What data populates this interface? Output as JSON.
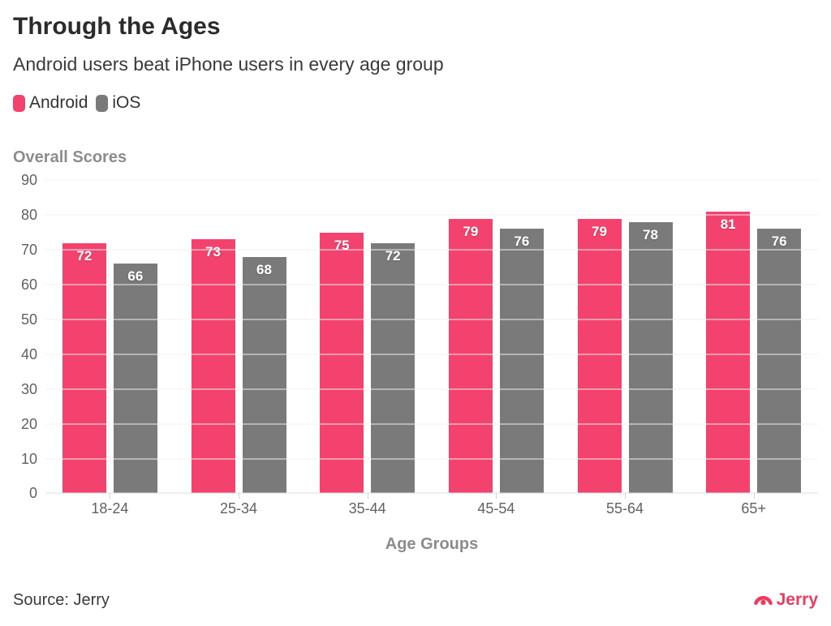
{
  "header": {
    "title": "Through the Ages",
    "subtitle": "Android users beat iPhone users in every age group"
  },
  "legend": [
    {
      "label": "Android",
      "color": "#f3426e"
    },
    {
      "label": "iOS",
      "color": "#7a7a7a"
    }
  ],
  "chart_data": {
    "type": "bar",
    "title": "Overall Scores",
    "categories": [
      "18-24",
      "25-34",
      "35-44",
      "45-54",
      "55-64",
      "65+"
    ],
    "series": [
      {
        "name": "Android",
        "color": "#f3426e",
        "values": [
          72,
          73,
          75,
          79,
          79,
          81
        ]
      },
      {
        "name": "iOS",
        "color": "#7a7a7a",
        "values": [
          66,
          68,
          72,
          76,
          78,
          76
        ]
      }
    ],
    "xlabel": "Age Groups",
    "ylabel": "",
    "ylim": [
      0,
      90
    ],
    "yticks": [
      0,
      10,
      20,
      30,
      40,
      50,
      60,
      70,
      80,
      90
    ],
    "grid": true,
    "legend_position": "top-left",
    "value_labels": true
  },
  "footer": {
    "source": "Source: Jerry",
    "brand": "Jerry",
    "brand_color": "#ee3a5f"
  }
}
